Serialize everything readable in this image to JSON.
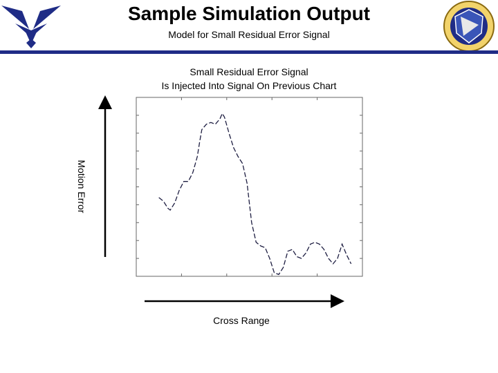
{
  "header": {
    "title": "Sample Simulation Output",
    "subtitle": "Model for Small Residual Error Signal",
    "rule_color": "#1f2c86"
  },
  "logos": {
    "left": "air-force-wings-logo",
    "right": "afrl-shield-emblem"
  },
  "chart_data": {
    "type": "line",
    "title_lines": [
      "Small Residual Error Signal",
      "Is Injected Into Signal On Previous Chart"
    ],
    "xlabel": "Cross Range",
    "ylabel": "Motion Error",
    "xlim": [
      0,
      100
    ],
    "ylim": [
      0,
      100
    ],
    "grid": false,
    "line_style": "dashed",
    "tick_labels_shown": false,
    "series": [
      {
        "name": "residual-error",
        "x": [
          10,
          12,
          14,
          15,
          17,
          19,
          21,
          23,
          25,
          27,
          28,
          29,
          31,
          33,
          35,
          37,
          38,
          39,
          41,
          43,
          45,
          47,
          49,
          51,
          53,
          55,
          57,
          59,
          61,
          63,
          65,
          67,
          69,
          71,
          73,
          75,
          77,
          79,
          81,
          83,
          85,
          87,
          89,
          91,
          93,
          95
        ],
        "y": [
          44,
          42,
          38,
          37,
          41,
          48,
          53,
          53,
          58,
          67,
          75,
          82,
          85,
          86,
          85,
          88,
          91,
          89,
          80,
          72,
          67,
          63,
          52,
          30,
          19,
          17,
          16,
          10,
          2,
          1,
          5,
          14,
          15,
          11,
          10,
          13,
          18,
          19,
          18,
          15,
          10,
          7,
          10,
          18,
          12,
          7
        ]
      }
    ]
  }
}
